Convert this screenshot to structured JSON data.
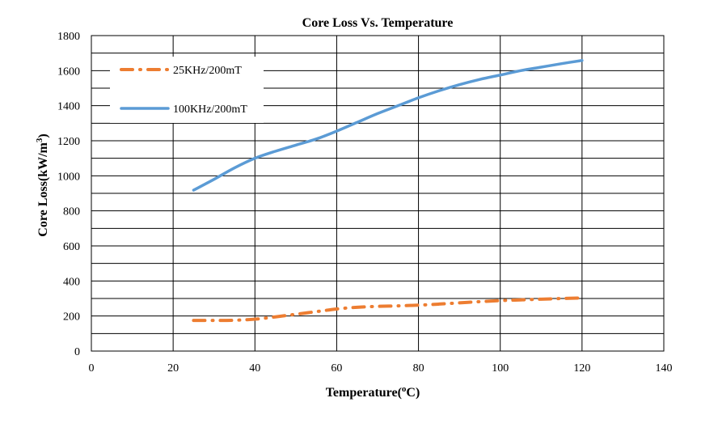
{
  "chart_data": {
    "type": "line",
    "title": "Core Loss Vs. Temperature",
    "xlabel": "Temperature(",
    "xlabel_unit_sup": "o",
    "xlabel_unit_tail": "C)",
    "ylabel": "Core Loss(kW/m",
    "ylabel_unit_sup": "3",
    "ylabel_unit_tail": ")",
    "xlim": [
      0,
      140
    ],
    "ylim": [
      0,
      1800
    ],
    "xticks": [
      0,
      20,
      40,
      60,
      80,
      100,
      120,
      140
    ],
    "yticks": [
      0,
      200,
      400,
      600,
      800,
      1000,
      1200,
      1400,
      1600,
      1800
    ],
    "ygrid_minor": [
      100,
      300,
      500,
      700,
      900,
      1100,
      1300,
      1500,
      1700
    ],
    "grid": true,
    "legend_position": "top-left",
    "series": [
      {
        "name": "25KHz/200mT",
        "style": "dash-dot",
        "color": "#ED7D31",
        "x": [
          25,
          30,
          35,
          40,
          45,
          50,
          55,
          60,
          65,
          70,
          75,
          80,
          85,
          90,
          95,
          100,
          105,
          110,
          115,
          120
        ],
        "y": [
          175,
          175,
          176,
          182,
          195,
          210,
          225,
          240,
          250,
          255,
          258,
          262,
          268,
          275,
          282,
          288,
          292,
          296,
          300,
          303
        ]
      },
      {
        "name": "100KHz/200mT",
        "style": "solid",
        "color": "#5B9BD5",
        "x": [
          25,
          30,
          35,
          40,
          45,
          50,
          55,
          60,
          65,
          70,
          75,
          80,
          85,
          90,
          95,
          100,
          105,
          110,
          115,
          120
        ],
        "y": [
          918,
          980,
          1045,
          1100,
          1140,
          1175,
          1210,
          1255,
          1305,
          1355,
          1400,
          1445,
          1485,
          1520,
          1550,
          1575,
          1600,
          1620,
          1640,
          1658
        ]
      }
    ]
  }
}
